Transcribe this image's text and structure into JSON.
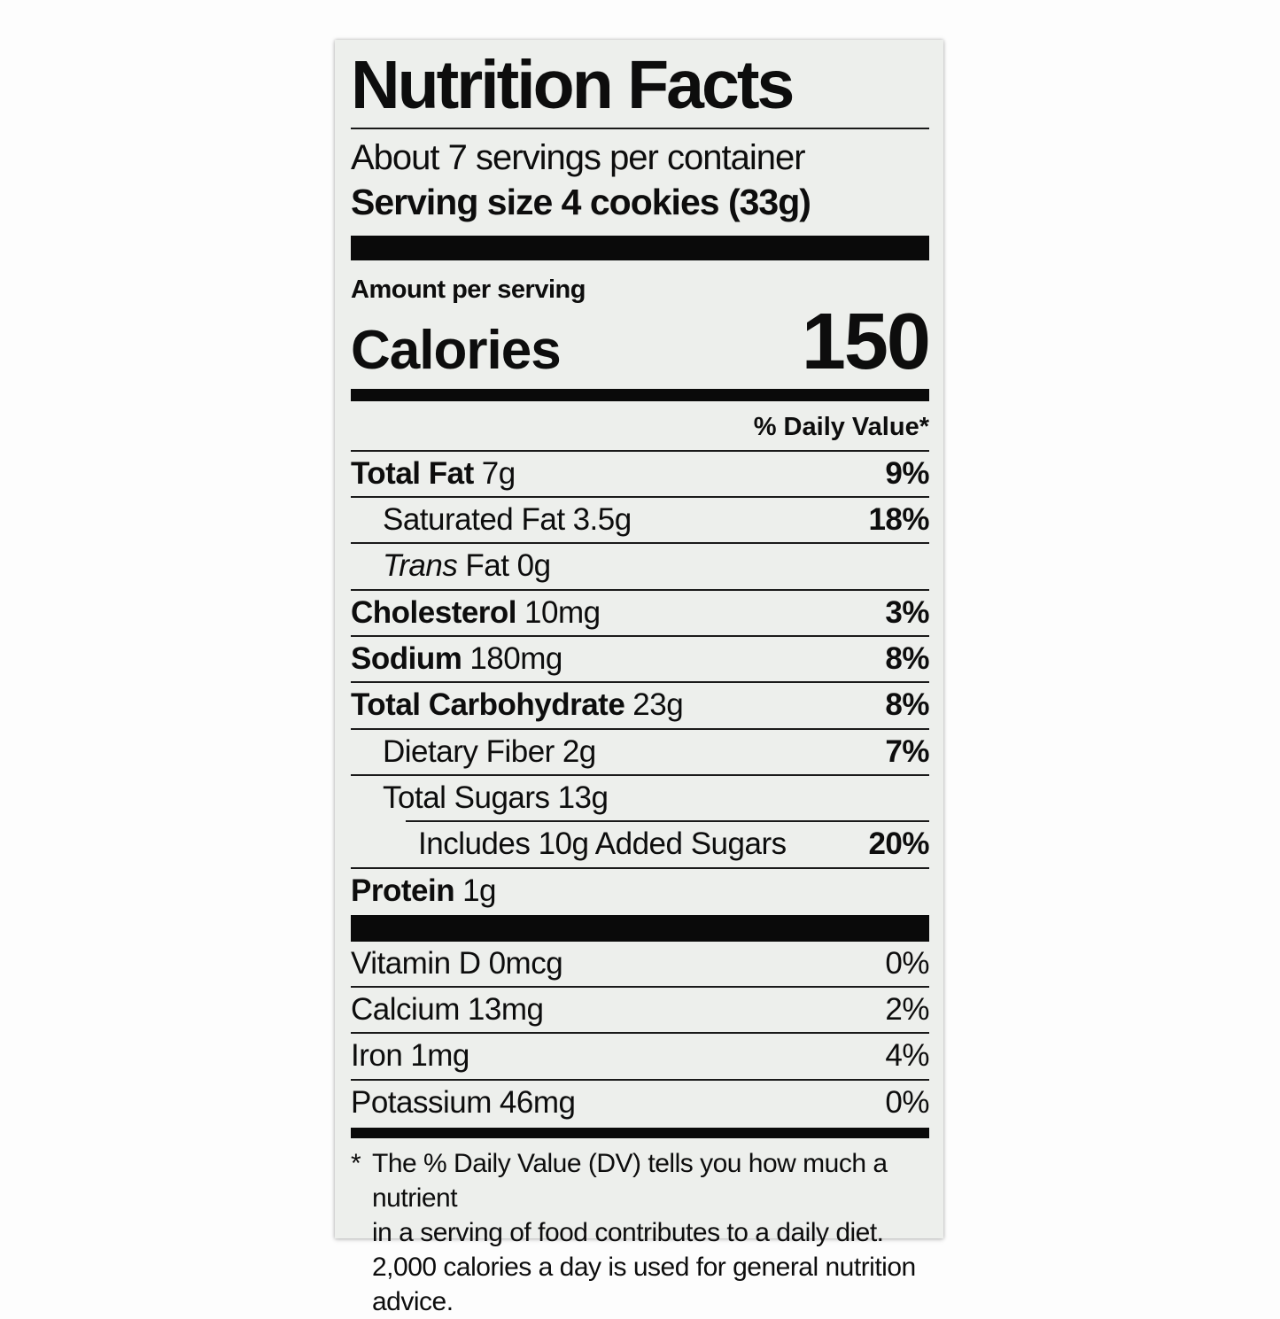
{
  "label": {
    "title": "Nutrition Facts",
    "servings_per_container": "About 7 servings per container",
    "serving_size": "Serving size 4 cookies (33g)",
    "amount_per_serving": "Amount per serving",
    "calories_label": "Calories",
    "calories_value": "150",
    "daily_value_header": "% Daily Value*",
    "nutrient_rows": [
      {
        "name": "Total Fat",
        "amount": "7g",
        "dv": "9%",
        "bold_name": true,
        "indent": 0,
        "rule": "full"
      },
      {
        "name": "Saturated Fat",
        "amount": "3.5g",
        "dv": "18%",
        "bold_name": false,
        "indent": 1,
        "rule": "full"
      },
      {
        "name": "Trans",
        "name_italic": true,
        "amount": "Fat 0g",
        "dv": "",
        "bold_name": false,
        "indent": 1,
        "rule": "full"
      },
      {
        "name": "Cholesterol",
        "amount": "10mg",
        "dv": "3%",
        "bold_name": true,
        "indent": 0,
        "rule": "full"
      },
      {
        "name": "Sodium",
        "amount": "180mg",
        "dv": "8%",
        "bold_name": true,
        "indent": 0,
        "rule": "full"
      },
      {
        "name": "Total Carbohydrate",
        "amount": "23g",
        "dv": "8%",
        "bold_name": true,
        "indent": 0,
        "rule": "full"
      },
      {
        "name": "Dietary Fiber",
        "amount": "2g",
        "dv": "7%",
        "bold_name": false,
        "indent": 1,
        "rule": "full"
      },
      {
        "name": "Total Sugars",
        "amount": "13g",
        "dv": "",
        "bold_name": false,
        "indent": 1,
        "rule": "full"
      },
      {
        "name": "Includes 10g Added Sugars",
        "amount": "",
        "dv": "20%",
        "bold_name": false,
        "indent": 2,
        "rule": "indent"
      },
      {
        "name": "Protein",
        "amount": "1g",
        "dv": "",
        "bold_name": true,
        "indent": 0,
        "rule": "full"
      }
    ],
    "vitamin_rows": [
      {
        "name": "Vitamin D",
        "amount": "0mcg",
        "dv": "0%",
        "rule": "none"
      },
      {
        "name": "Calcium",
        "amount": "13mg",
        "dv": "2%",
        "rule": "full"
      },
      {
        "name": "Iron",
        "amount": "1mg",
        "dv": "4%",
        "rule": "full"
      },
      {
        "name": "Potassium",
        "amount": "46mg",
        "dv": "0%",
        "rule": "full"
      }
    ],
    "footnote": {
      "marker": "*",
      "lines": [
        "The % Daily Value (DV) tells you how much a nutrient",
        "in a serving of food contributes to a daily diet.",
        "2,000 calories a day is used for general nutrition advice."
      ]
    }
  }
}
